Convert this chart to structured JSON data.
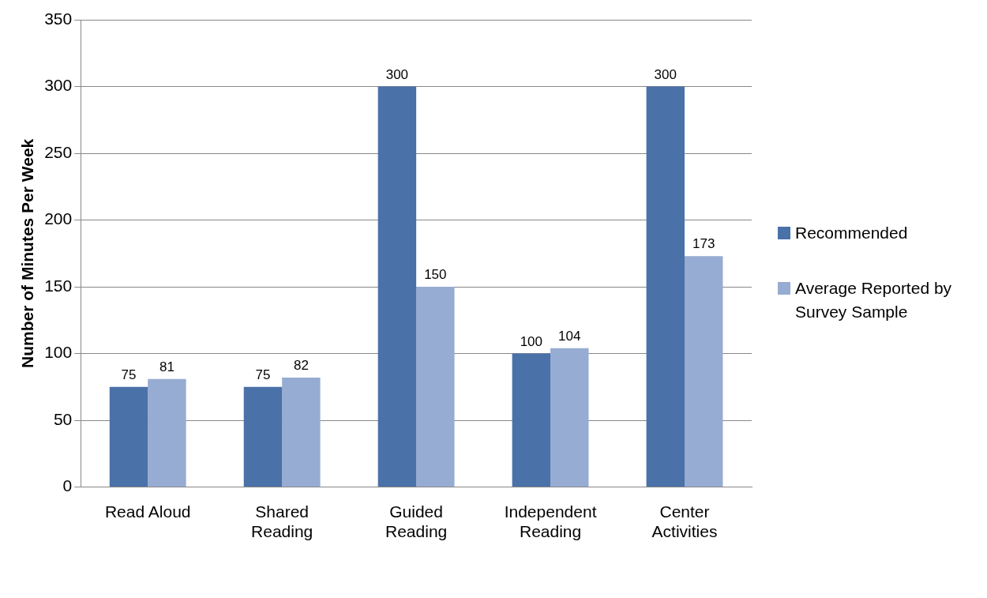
{
  "chart_data": {
    "type": "bar",
    "ylabel": "Number of Minutes Per Week",
    "categories": [
      "Read Aloud",
      "Shared Reading",
      "Guided Reading",
      "Independent Reading",
      "Center Activities"
    ],
    "series": [
      {
        "name": "Recommended",
        "color": "#4a71a8",
        "values": [
          75,
          75,
          300,
          100,
          300
        ]
      },
      {
        "name": "Average Reported by Survey Sample",
        "color": "#97acd2",
        "values": [
          81,
          82,
          150,
          104,
          173
        ]
      }
    ],
    "ylim": [
      0,
      350
    ],
    "yticks": [
      0,
      50,
      100,
      150,
      200,
      250,
      300,
      350
    ],
    "grid": "y",
    "legend": "right",
    "data_labels": true
  }
}
